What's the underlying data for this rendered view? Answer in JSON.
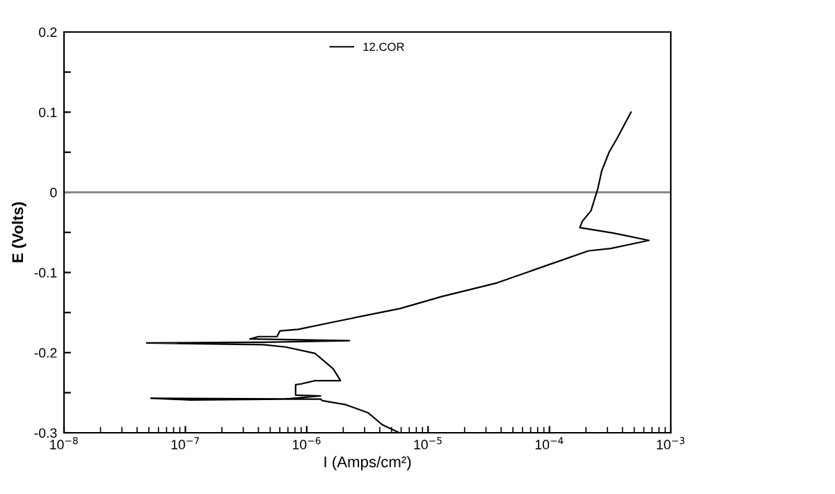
{
  "chart_data": {
    "type": "line",
    "xlabel": "I (Amps/cm²)",
    "ylabel": "E (Volts)",
    "log": "x",
    "xlim": [
      1e-08,
      0.001
    ],
    "ylim": [
      -0.3,
      0.2
    ],
    "xticks": [
      {
        "value": 1e-08,
        "label": "10$^{−8}$"
      },
      {
        "value": 1e-07,
        "label": "10$^{−7}$"
      },
      {
        "value": 1e-06,
        "label": "10$^{−6}$"
      },
      {
        "value": 1e-05,
        "label": "10$^{−5}$"
      },
      {
        "value": 0.0001,
        "label": "10$^{−4}$"
      },
      {
        "value": 0.001,
        "label": "10$^{−3}$"
      }
    ],
    "yticks": [
      {
        "value": -0.3,
        "label": "-0.3"
      },
      {
        "value": -0.25,
        "label": null
      },
      {
        "value": -0.2,
        "label": "-0.2"
      },
      {
        "value": -0.15,
        "label": null
      },
      {
        "value": -0.1,
        "label": "-0.1"
      },
      {
        "value": -0.05,
        "label": null
      },
      0,
      {
        "value": 0.05,
        "label": null
      },
      0.1,
      {
        "value": 0.15,
        "label": null
      },
      0.2
    ],
    "ref_lines": [
      {
        "axis": "y",
        "value": 0,
        "color": "#808080"
      }
    ],
    "legend": "top",
    "grid": false,
    "marker": "none",
    "line_style": "solid",
    "series": [
      {
        "name": "12.COR",
        "color": "#000000",
        "x": [
          5.8e-06,
          4.2e-06,
          3.2e-06,
          2.1e-06,
          1.35e-06,
          1.3e-06,
          5.2e-08,
          1.1e-07,
          6.5e-07,
          1.3e-06,
          8.1e-07,
          8.1e-07,
          9e-07,
          1.17e-06,
          1.9e-06,
          1.65e-06,
          1.17e-06,
          6.7e-07,
          4.4e-07,
          4.8e-08,
          4.5e-07,
          2.25e-06,
          3.4e-07,
          4e-07,
          5.7e-07,
          6e-07,
          8.5e-07,
          1.9e-06,
          5.9e-06,
          1.3e-05,
          3.7e-05,
          0.0001,
          0.00021,
          0.00032,
          0.00066,
          0.00034,
          0.000178,
          0.000187,
          0.00022,
          0.00025,
          0.00027,
          0.00031,
          0.00036,
          0.00047
        ],
        "values": [
          -0.3,
          -0.29,
          -0.275,
          -0.265,
          -0.26,
          -0.258,
          -0.257,
          -0.259,
          -0.258,
          -0.254,
          -0.253,
          -0.24,
          -0.239,
          -0.235,
          -0.235,
          -0.22,
          -0.201,
          -0.193,
          -0.19,
          -0.188,
          -0.187,
          -0.185,
          -0.183,
          -0.18,
          -0.18,
          -0.173,
          -0.171,
          -0.16,
          -0.145,
          -0.13,
          -0.113,
          -0.09,
          -0.073,
          -0.07,
          -0.06,
          -0.051,
          -0.044,
          -0.036,
          -0.023,
          0.004,
          0.027,
          0.05,
          0.067,
          0.1
        ]
      }
    ]
  }
}
